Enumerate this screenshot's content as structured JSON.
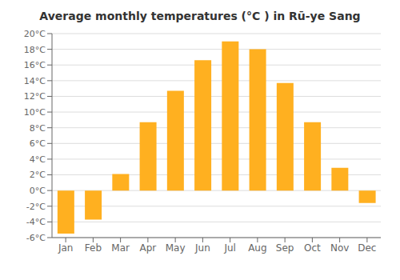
{
  "chart_data": {
    "type": "bar",
    "title": "Average monthly temperatures (°C ) in Rū-ye Sang",
    "categories": [
      "Jan",
      "Feb",
      "Mar",
      "Apr",
      "May",
      "Jun",
      "Jul",
      "Aug",
      "Sep",
      "Oct",
      "Nov",
      "Dec"
    ],
    "values": [
      -5.5,
      -3.7,
      2.1,
      8.7,
      12.7,
      16.6,
      19.0,
      18.0,
      13.7,
      8.7,
      2.9,
      -1.6
    ],
    "color": "#FFB020",
    "ylim": [
      -6,
      20
    ],
    "yticks": [
      {
        "value": -6,
        "label": "-6°C"
      },
      {
        "value": -4,
        "label": "-4°C"
      },
      {
        "value": -2,
        "label": "-2°C"
      },
      {
        "value": 0,
        "label": "0°C"
      },
      {
        "value": 2,
        "label": "2°C"
      },
      {
        "value": 4,
        "label": "4°C"
      },
      {
        "value": 6,
        "label": "6°C"
      },
      {
        "value": 8,
        "label": "8°C"
      },
      {
        "value": 10,
        "label": "10°C"
      },
      {
        "value": 12,
        "label": "12°C"
      },
      {
        "value": 14,
        "label": "14°C"
      },
      {
        "value": 16,
        "label": "16°C"
      },
      {
        "value": 18,
        "label": "18°C"
      },
      {
        "value": 20,
        "label": "20°C"
      }
    ],
    "grid": true
  }
}
